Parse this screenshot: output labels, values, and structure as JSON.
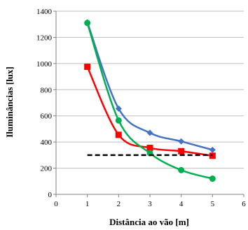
{
  "chart_data": {
    "type": "line",
    "xlabel": "Distância ao vão [m]",
    "ylabel": "Iluminâncias [lux]",
    "xlim": [
      0,
      6
    ],
    "ylim": [
      0,
      1400
    ],
    "x_ticks": [
      "0",
      "1",
      "2",
      "3",
      "4",
      "5",
      "6"
    ],
    "y_ticks": [
      "0",
      "200",
      "400",
      "600",
      "800",
      "1000",
      "1200",
      "1400"
    ],
    "grid": "horizontal",
    "legend": "none",
    "series": [
      {
        "color": "#4472C4",
        "marker": "diamond",
        "smooth": true,
        "x": [
          1,
          2,
          3,
          4,
          5
        ],
        "y": [
          1315,
          655,
          470,
          405,
          340
        ]
      },
      {
        "color": "#FF0000",
        "marker": "square",
        "smooth": true,
        "x": [
          1,
          2,
          3,
          4,
          5
        ],
        "y": [
          975,
          455,
          355,
          330,
          295
        ]
      },
      {
        "color": "#00B050",
        "marker": "circle",
        "smooth": true,
        "x": [
          1,
          2,
          3,
          4,
          5
        ],
        "y": [
          1310,
          565,
          315,
          185,
          120
        ]
      },
      {
        "color": "#000000",
        "marker": "none",
        "dashed": true,
        "x": [
          1,
          5
        ],
        "y": [
          300,
          300
        ]
      }
    ]
  }
}
